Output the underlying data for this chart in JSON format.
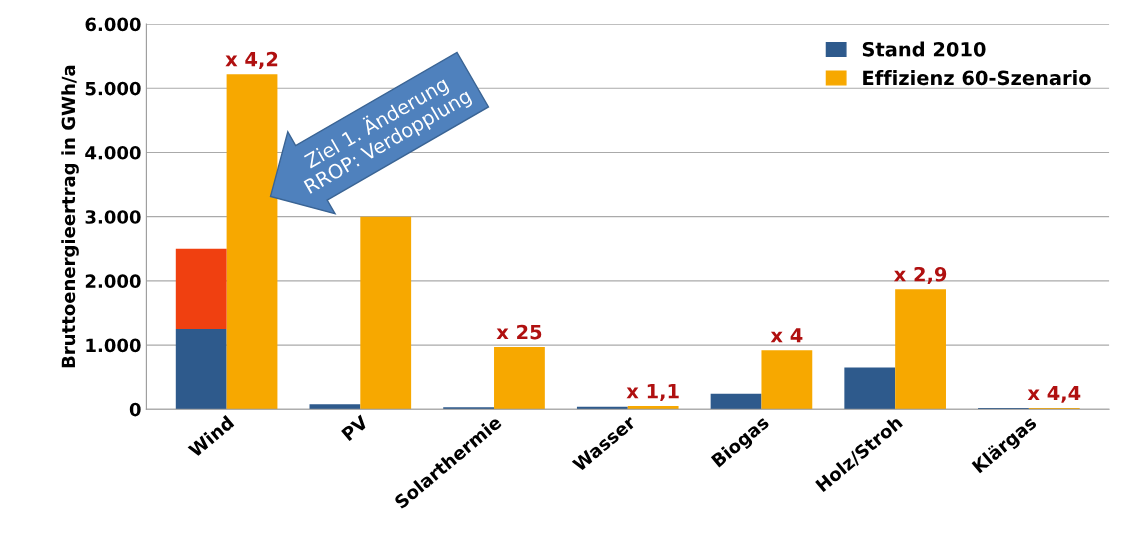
{
  "chart_data": {
    "type": "bar",
    "ylabel": "Bruttoenergieertrag in GWh/a",
    "categories": [
      "Wind",
      "PV",
      "Solarthermie",
      "Wasser",
      "Biogas",
      "Holz/Stroh",
      "Klärgas"
    ],
    "series": [
      {
        "name": "Stand 2010",
        "color": "#2e5a8c",
        "values": [
          1250,
          80,
          30,
          40,
          240,
          650,
          20
        ]
      },
      {
        "name": "Effizienz 60-Szenario",
        "color": "#f7a800",
        "values": [
          5220,
          3000,
          970,
          50,
          920,
          1870,
          20
        ],
        "value_labels": [
          "x 4,2",
          null,
          "x 25",
          "x 1,1",
          "x 4",
          "x 2,9",
          "x 4,4"
        ]
      },
      {
        "color": "#f04010",
        "values": [
          1250,
          null,
          null,
          null,
          null,
          null,
          null
        ],
        "base": [
          1250,
          null,
          null,
          null,
          null,
          null,
          null
        ]
      }
    ],
    "ylim": [
      0,
      6000
    ],
    "yticks": [
      0,
      {
        "value": 1000,
        "label": "1.000"
      },
      {
        "value": 2000,
        "label": "2.000"
      },
      {
        "value": 3000,
        "label": "3.000"
      },
      {
        "value": 4000,
        "label": "4.000"
      },
      {
        "value": 5000,
        "label": "5.000"
      },
      {
        "value": 6000,
        "label": "6.000"
      }
    ],
    "grid": "y",
    "legend": "top right",
    "annotations": [
      "Ziel 1. Änderung\nRROP: Verdopplung"
    ]
  }
}
